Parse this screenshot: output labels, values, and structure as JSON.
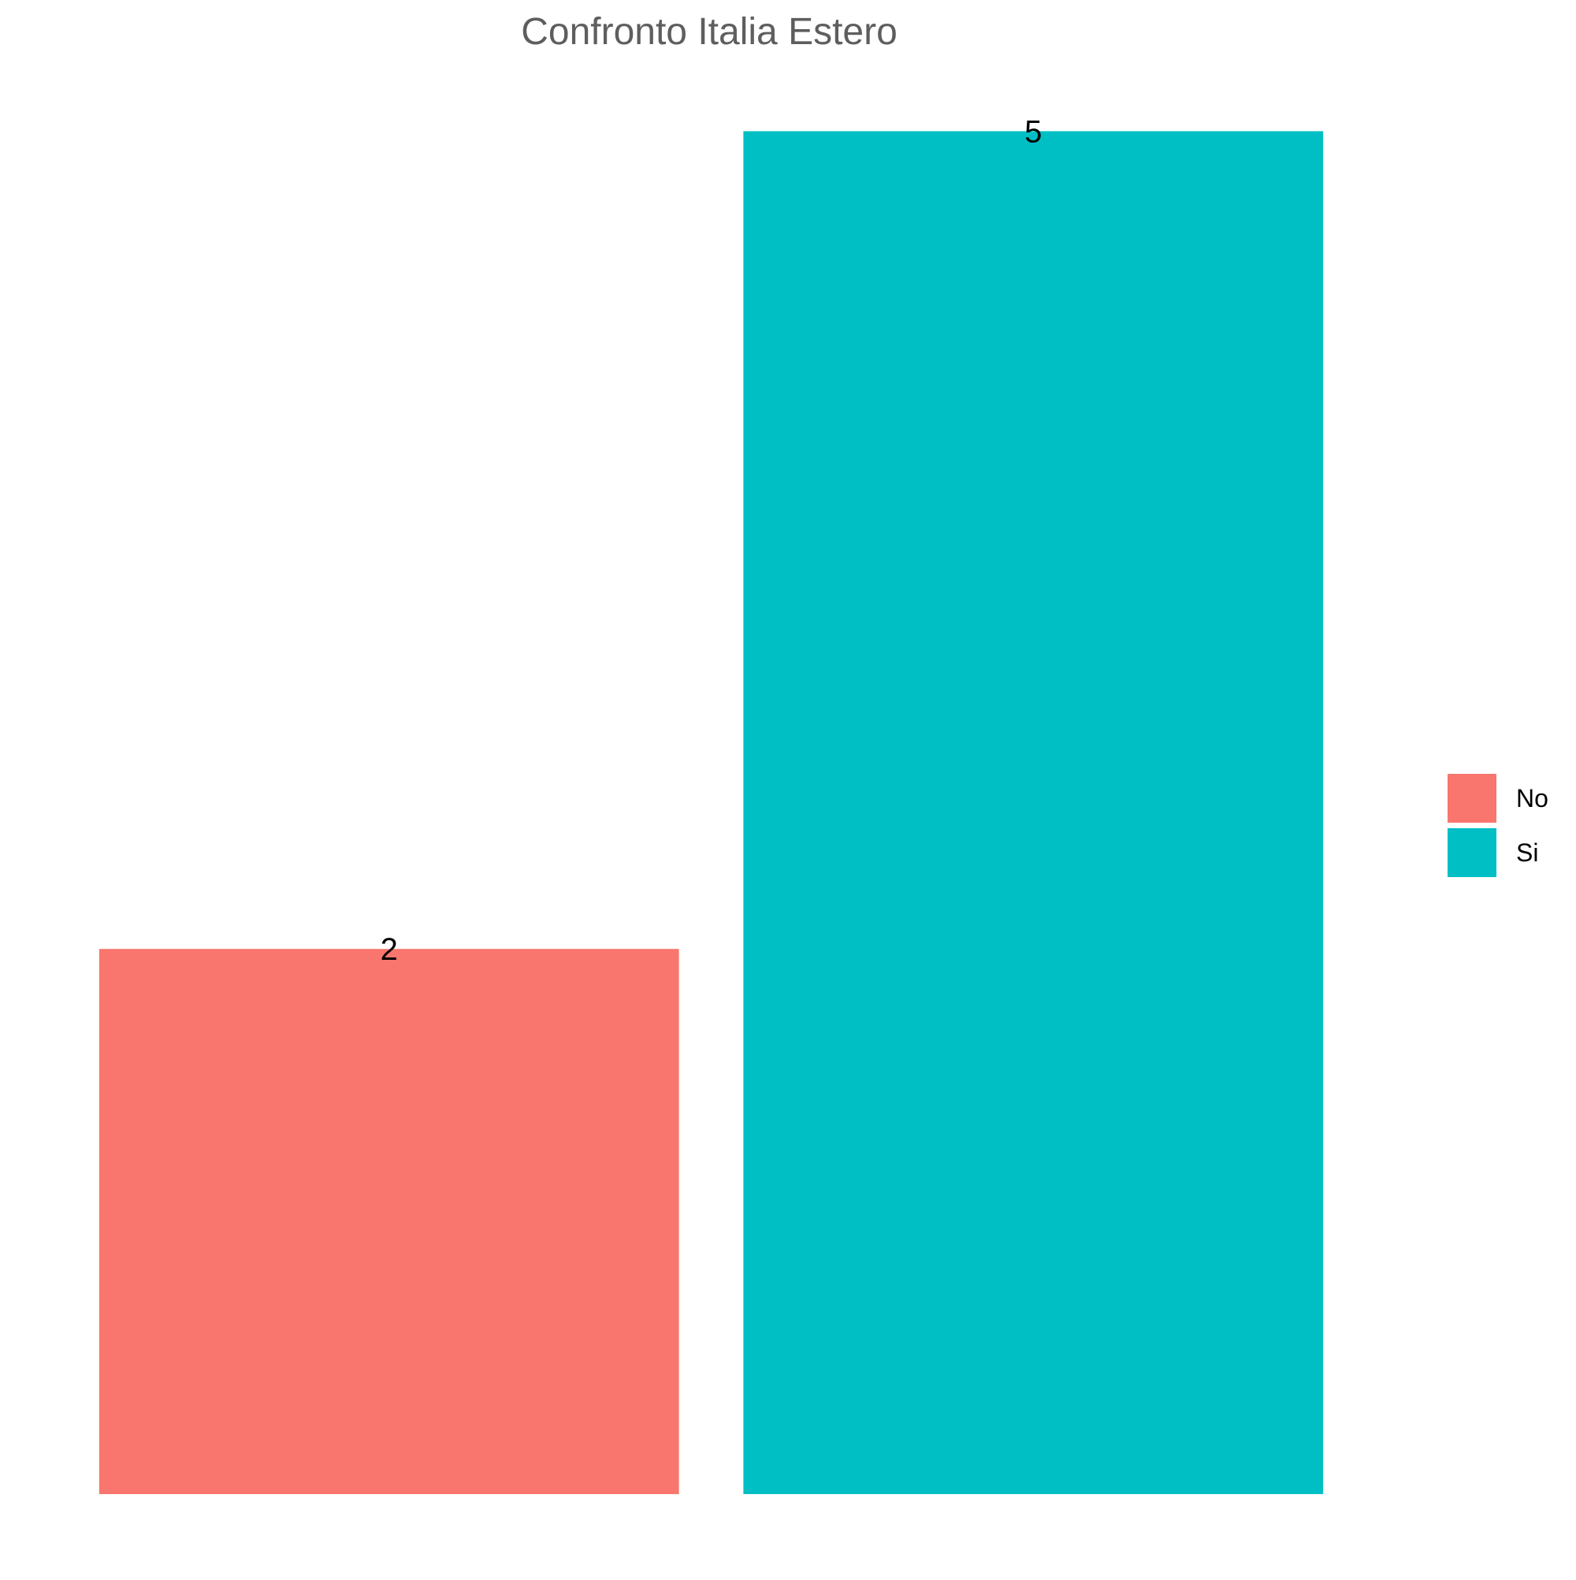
{
  "chart_data": {
    "type": "bar",
    "title": "Confronto Italia Estero",
    "xlabel": "",
    "ylabel": "",
    "categories": [
      "No",
      "Si"
    ],
    "values": [
      2,
      5
    ],
    "ylim": [
      0,
      5.25
    ],
    "grid": false,
    "legend": {
      "position": "right",
      "entries": [
        "No",
        "Si"
      ]
    },
    "colors": [
      "#F8766D",
      "#00BFC4"
    ]
  }
}
